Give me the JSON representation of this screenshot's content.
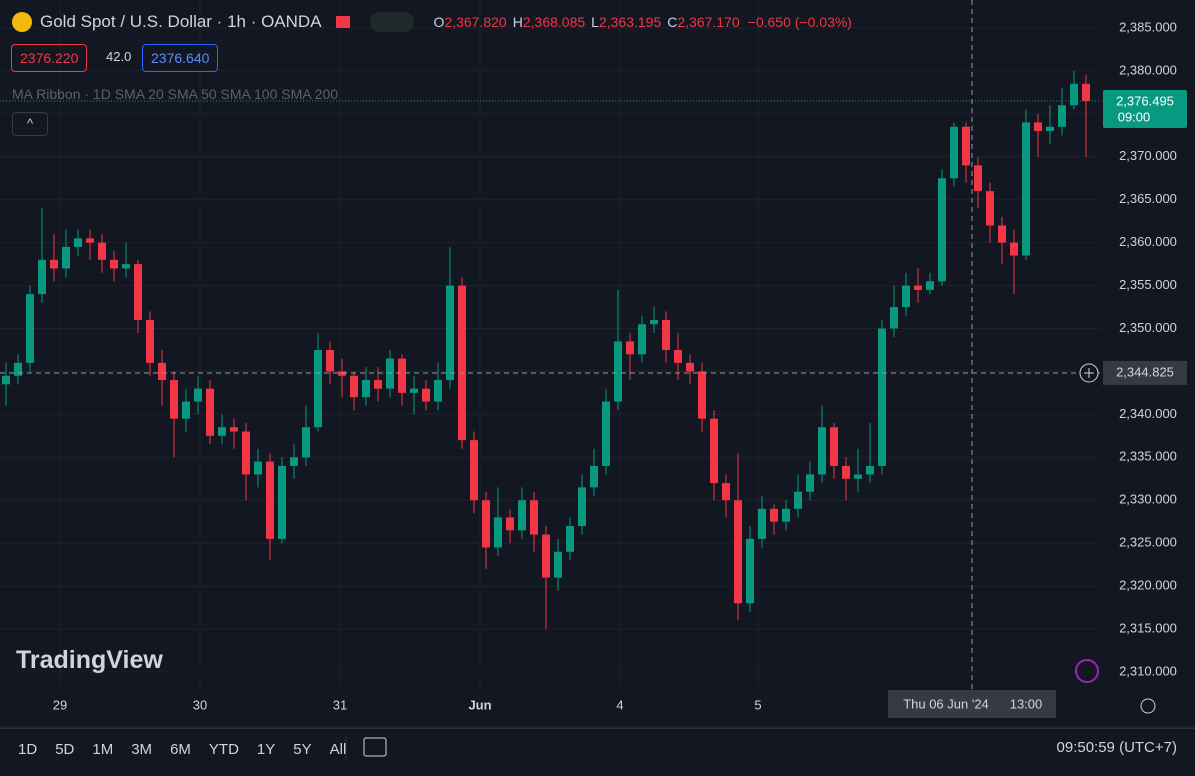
{
  "header": {
    "title": "Gold Spot / U.S. Dollar · 1h · OANDA",
    "ohlc": [
      {
        "key": "O",
        "value": "2,367.820"
      },
      {
        "key": "H",
        "value": "2,368.085"
      },
      {
        "key": "L",
        "value": "2,363.195"
      },
      {
        "key": "C",
        "value": "2,367.170"
      }
    ],
    "change": "−0.650 (−0.03%)",
    "sell": "2376.220",
    "spread": "42.0",
    "buy": "2376.640",
    "indicator": "MA Ribbon · 1D SMA 20 SMA 50 SMA 100 SMA 200"
  },
  "chart_data": {
    "type": "candlestick",
    "open": [
      2343.5,
      2344.5,
      2346.0,
      2354.0,
      2358.0,
      2357.0,
      2359.5,
      2360.5,
      2360.0,
      2358.0,
      2357.0,
      2357.5,
      2351.0,
      2346.0,
      2344.0,
      2339.5,
      2341.5,
      2343.0,
      2337.5,
      2338.5,
      2338.0,
      2333.0,
      2334.5,
      2325.5,
      2334.0,
      2335.0,
      2338.5,
      2347.5,
      2345.0,
      2344.5,
      2342.0,
      2344.0,
      2343.0,
      2346.5,
      2342.5,
      2343.0,
      2341.5,
      2344.0,
      2355.0,
      2337.0,
      2330.0,
      2324.5,
      2328.0,
      2326.5,
      2330.0,
      2326.0,
      2321.0,
      2324.0,
      2327.0,
      2331.5,
      2334.0,
      2341.5,
      2348.5,
      2347.0,
      2350.5,
      2351.0,
      2347.5,
      2346.0,
      2345.0,
      2339.5,
      2332.0,
      2330.0,
      2318.0,
      2325.5,
      2329.0,
      2327.5,
      2329.0,
      2331.0,
      2333.0,
      2338.5,
      2334.0,
      2332.5,
      2333.0,
      2334.0,
      2350.0,
      2352.5,
      2355.0,
      2354.5,
      2355.5,
      2367.5,
      2373.5,
      2369.0,
      2366.0,
      2362.0,
      2360.0,
      2358.5,
      2374.0,
      2373.0,
      2373.5,
      2376.0,
      2378.5
    ],
    "high": [
      2346.0,
      2347.0,
      2355.0,
      2364.0,
      2361.0,
      2361.5,
      2361.5,
      2361.5,
      2361.0,
      2359.0,
      2360.0,
      2358.0,
      2352.0,
      2347.5,
      2345.0,
      2343.0,
      2344.5,
      2344.0,
      2340.0,
      2339.5,
      2339.0,
      2336.0,
      2335.5,
      2335.0,
      2336.5,
      2341.0,
      2349.5,
      2348.5,
      2346.5,
      2345.0,
      2345.5,
      2345.5,
      2347.5,
      2347.0,
      2344.5,
      2344.0,
      2346.0,
      2359.5,
      2356.0,
      2338.0,
      2331.0,
      2331.5,
      2329.0,
      2331.5,
      2331.0,
      2327.0,
      2325.5,
      2328.0,
      2333.0,
      2336.0,
      2343.0,
      2354.5,
      2349.5,
      2351.5,
      2352.5,
      2352.0,
      2349.5,
      2347.0,
      2346.0,
      2340.5,
      2333.0,
      2335.5,
      2327.0,
      2330.5,
      2329.5,
      2330.0,
      2333.0,
      2334.5,
      2341.0,
      2339.0,
      2335.0,
      2336.0,
      2339.0,
      2351.0,
      2355.0,
      2356.5,
      2357.0,
      2356.5,
      2368.5,
      2374.0,
      2374.0,
      2370.0,
      2367.0,
      2363.0,
      2361.5,
      2375.5,
      2375.0,
      2376.0,
      2378.0,
      2380.0,
      2379.5
    ],
    "low": [
      2341.0,
      2343.5,
      2345.0,
      2353.0,
      2355.5,
      2356.0,
      2358.5,
      2358.0,
      2356.5,
      2355.5,
      2356.0,
      2349.5,
      2344.5,
      2341.0,
      2335.0,
      2338.0,
      2340.0,
      2336.5,
      2336.5,
      2336.0,
      2330.0,
      2331.5,
      2323.0,
      2325.0,
      2332.5,
      2334.0,
      2338.0,
      2343.5,
      2342.0,
      2340.5,
      2341.0,
      2341.5,
      2342.0,
      2341.0,
      2340.0,
      2340.5,
      2340.5,
      2343.0,
      2336.0,
      2328.5,
      2322.0,
      2323.5,
      2325.0,
      2325.5,
      2324.0,
      2315.0,
      2319.5,
      2323.0,
      2326.0,
      2330.5,
      2333.0,
      2340.5,
      2344.0,
      2346.0,
      2349.5,
      2346.0,
      2344.0,
      2343.5,
      2338.0,
      2330.0,
      2328.0,
      2316.0,
      2317.0,
      2324.5,
      2326.0,
      2326.5,
      2328.0,
      2330.0,
      2332.0,
      2332.5,
      2330.0,
      2331.0,
      2332.0,
      2333.0,
      2349.0,
      2351.5,
      2353.0,
      2354.0,
      2355.0,
      2366.5,
      2367.0,
      2364.0,
      2360.0,
      2357.5,
      2354.0,
      2358.0,
      2370.0,
      2371.5,
      2372.5,
      2375.5,
      2370.0
    ],
    "close": [
      2344.5,
      2346.0,
      2354.0,
      2358.0,
      2357.0,
      2359.5,
      2360.5,
      2360.0,
      2358.0,
      2357.0,
      2357.5,
      2351.0,
      2346.0,
      2344.0,
      2339.5,
      2341.5,
      2343.0,
      2337.5,
      2338.5,
      2338.0,
      2333.0,
      2334.5,
      2325.5,
      2334.0,
      2335.0,
      2338.5,
      2347.5,
      2345.0,
      2344.5,
      2342.0,
      2344.0,
      2343.0,
      2346.5,
      2342.5,
      2343.0,
      2341.5,
      2344.0,
      2355.0,
      2337.0,
      2330.0,
      2324.5,
      2328.0,
      2326.5,
      2330.0,
      2326.0,
      2321.0,
      2324.0,
      2327.0,
      2331.5,
      2334.0,
      2341.5,
      2348.5,
      2347.0,
      2350.5,
      2351.0,
      2347.5,
      2346.0,
      2345.0,
      2339.5,
      2332.0,
      2330.0,
      2318.0,
      2325.5,
      2329.0,
      2327.5,
      2329.0,
      2331.0,
      2333.0,
      2338.5,
      2334.0,
      2332.5,
      2333.0,
      2334.0,
      2350.0,
      2352.5,
      2355.0,
      2354.5,
      2355.5,
      2367.5,
      2373.5,
      2369.0,
      2366.0,
      2362.0,
      2360.0,
      2358.5,
      2374.0,
      2373.0,
      2373.5,
      2376.0,
      2378.5,
      2376.5
    ],
    "up_color": "#089981",
    "down_color": "#f23645",
    "ylim": [
      2307.9,
      2388.26
    ],
    "yticks": [
      {
        "value": 2310,
        "label": "2,310.000"
      },
      {
        "value": 2315,
        "label": "2,315.000"
      },
      {
        "value": 2320,
        "label": "2,320.000"
      },
      {
        "value": 2325,
        "label": "2,325.000"
      },
      {
        "value": 2330,
        "label": "2,330.000"
      },
      {
        "value": 2335,
        "label": "2,335.000"
      },
      {
        "value": 2340,
        "label": "2,340.000"
      },
      {
        "value": 2345,
        "label": "2,345.000"
      },
      {
        "value": 2350,
        "label": "2,350.000"
      },
      {
        "value": 2355,
        "label": "2,355.000"
      },
      {
        "value": 2360,
        "label": "2,360.000"
      },
      {
        "value": 2365,
        "label": "2,365.000"
      },
      {
        "value": 2370,
        "label": "2,370.000"
      },
      {
        "value": 2375,
        "label": "2,375.000"
      },
      {
        "value": 2380,
        "label": "2,380.000"
      },
      {
        "value": 2385,
        "label": "2,385.000"
      }
    ],
    "x_labels": [
      "29",
      "30",
      "31",
      "Jun",
      "4",
      "5"
    ],
    "grid": true,
    "current_price": {
      "value": 2376.495,
      "label": "2,376.495",
      "countdown": "09:00"
    },
    "crosshair": {
      "price": 2344.825,
      "price_label": "2,344.825",
      "date": "Thu 06 Jun '24",
      "time": "13:00"
    }
  },
  "watermark": "TradingView",
  "toolbar": {
    "ranges": [
      "1D",
      "5D",
      "1M",
      "3M",
      "6M",
      "YTD",
      "1Y",
      "5Y",
      "All"
    ],
    "clock": "09:50:59 (UTC+7)"
  }
}
